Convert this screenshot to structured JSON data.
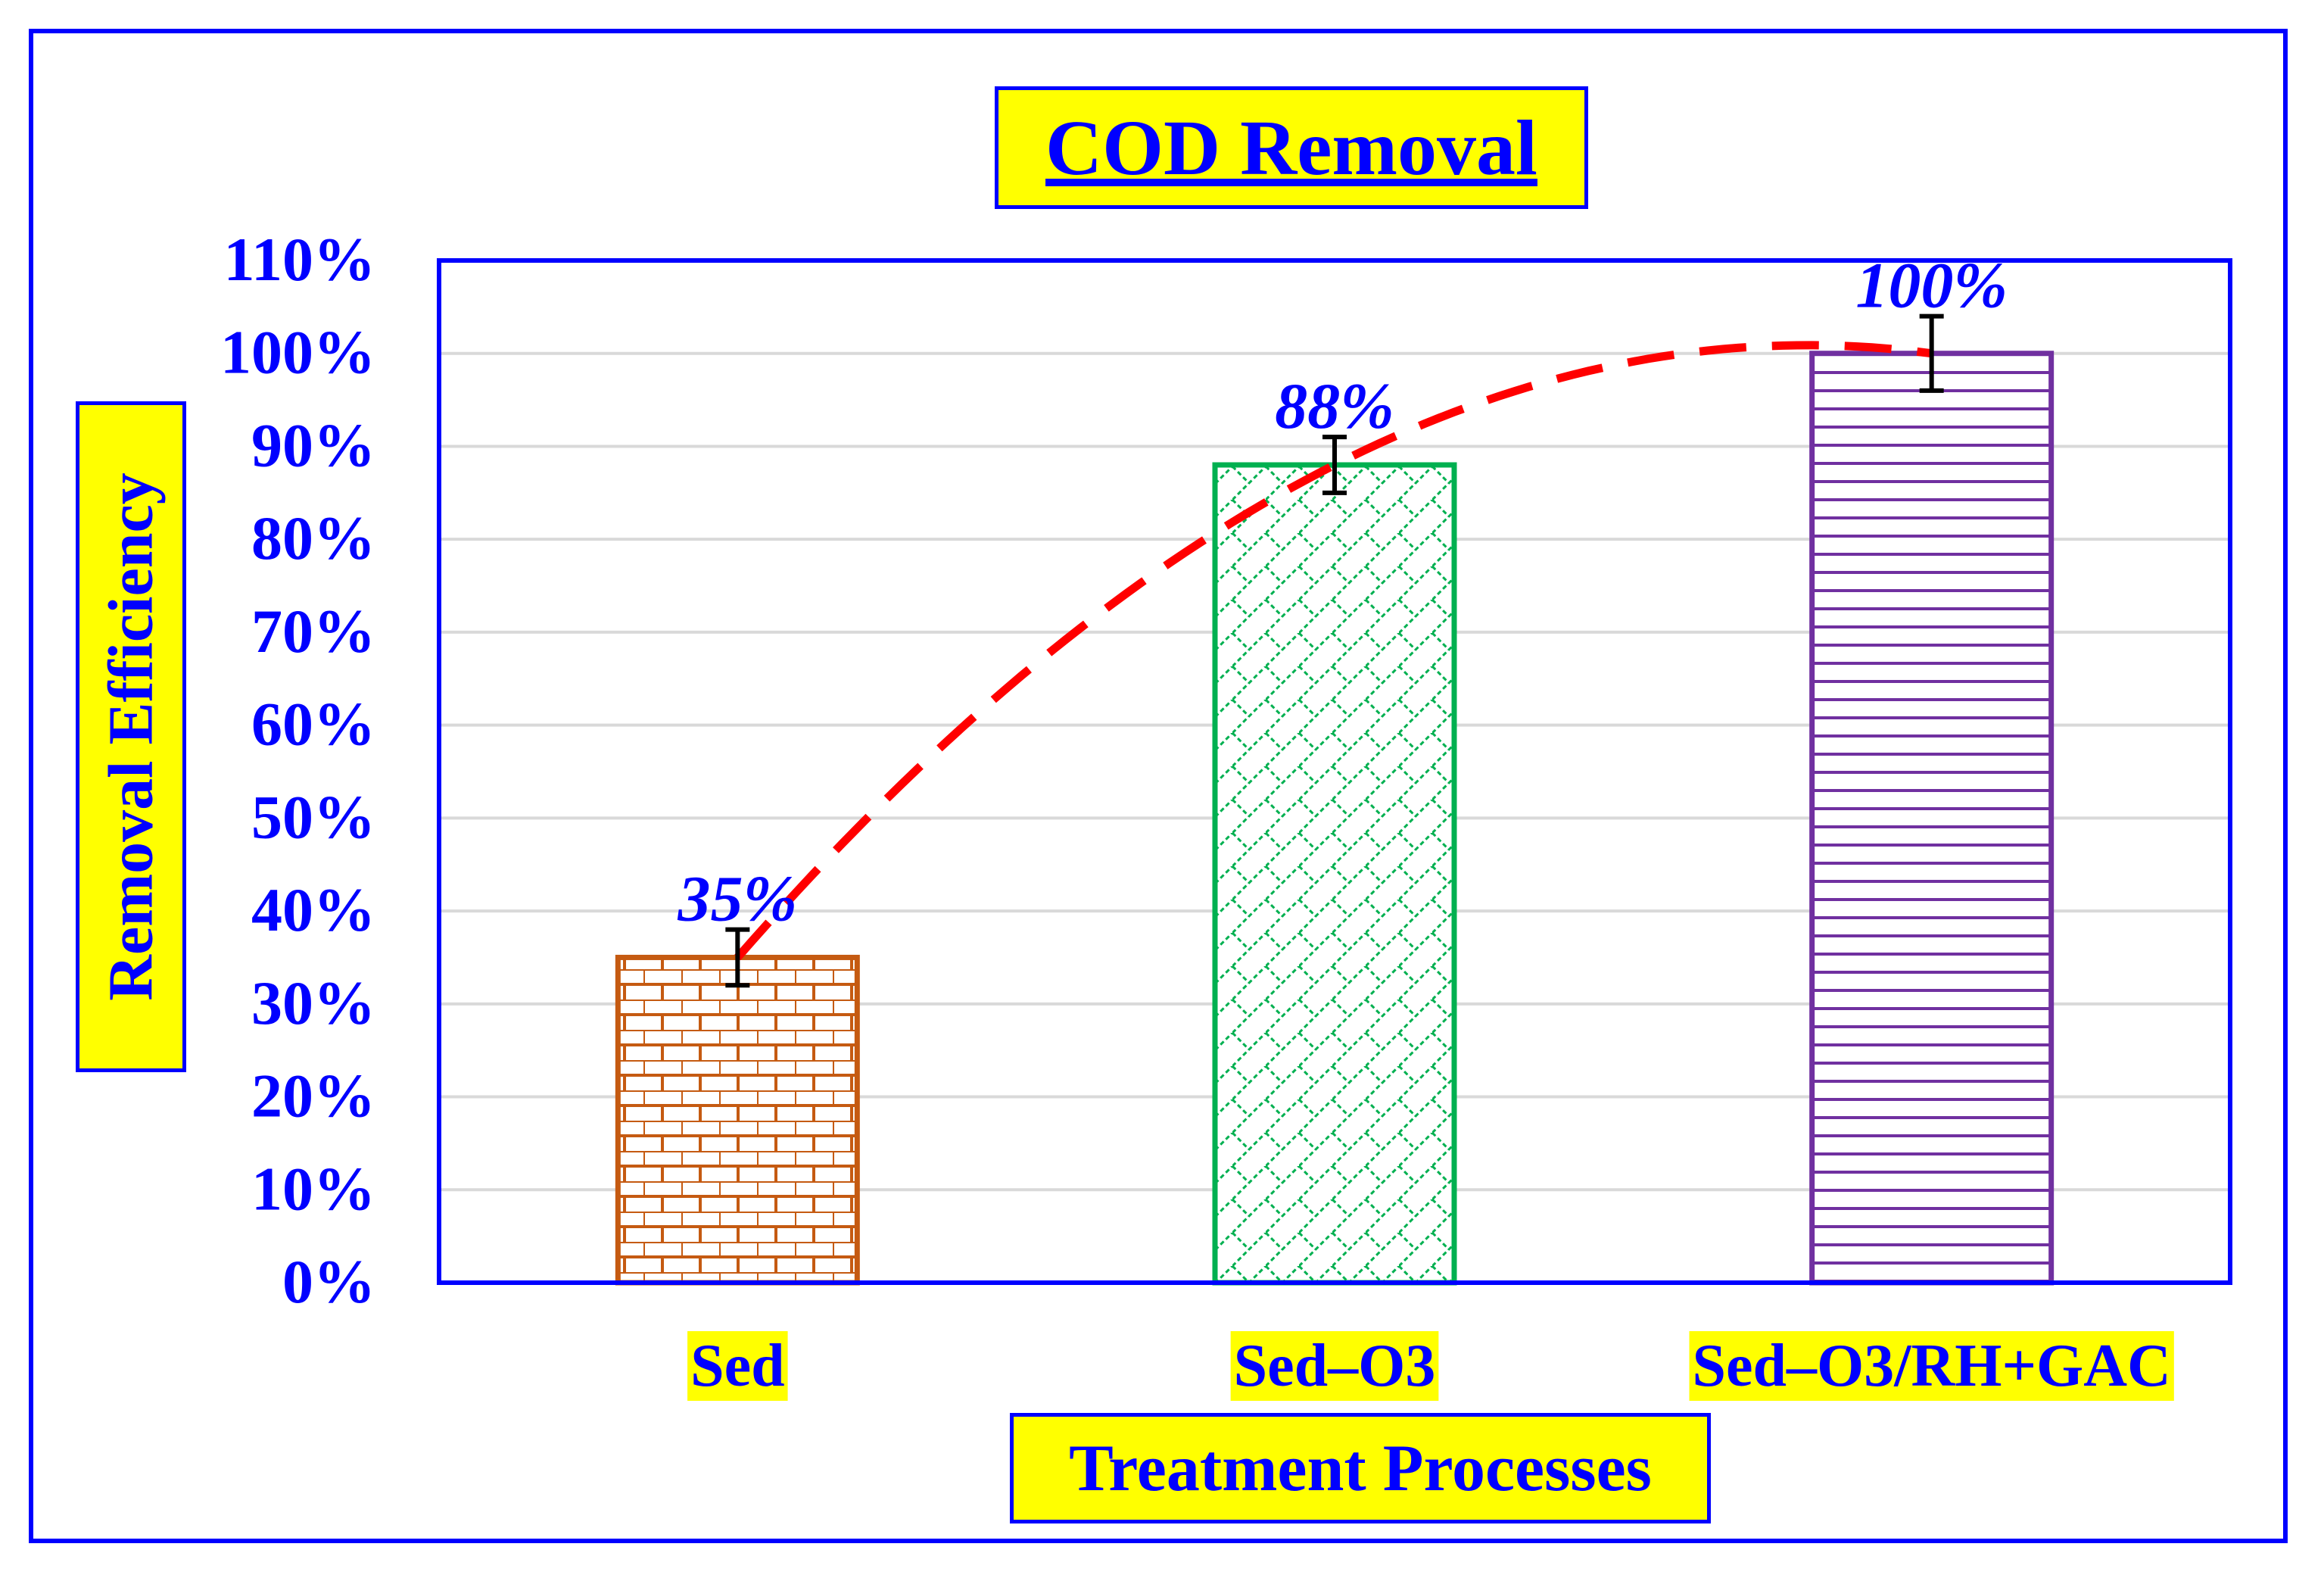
{
  "chart_data": {
    "type": "bar",
    "title": "COD Removal",
    "xlabel": "Treatment Processes",
    "ylabel": "Removal Efficiency",
    "categories": [
      "Sed",
      "Sed–O3",
      "Sed–O3/RH+GAC"
    ],
    "values": [
      35,
      88,
      100
    ],
    "data_labels": [
      "35%",
      "88%",
      "100%"
    ],
    "error_bars": [
      3,
      3,
      4
    ],
    "ylim": [
      0,
      110
    ],
    "yticks": [
      "0%",
      "10%",
      "20%",
      "30%",
      "40%",
      "50%",
      "60%",
      "70%",
      "80%",
      "90%",
      "100%",
      "110%"
    ],
    "trendline": {
      "style": "dashed",
      "type": "polynomial"
    },
    "grid": true,
    "colors": {
      "axis": "#0000ff",
      "label_background": "#ffff00",
      "grid": "#d9d9d9",
      "trendline": "#ff0000",
      "bars": [
        "#c55a11",
        "#00b050",
        "#7030a0"
      ],
      "error_bar": "#000000"
    },
    "patterns": [
      "brick",
      "diagonal-lattice",
      "horizontal-lines"
    ]
  }
}
